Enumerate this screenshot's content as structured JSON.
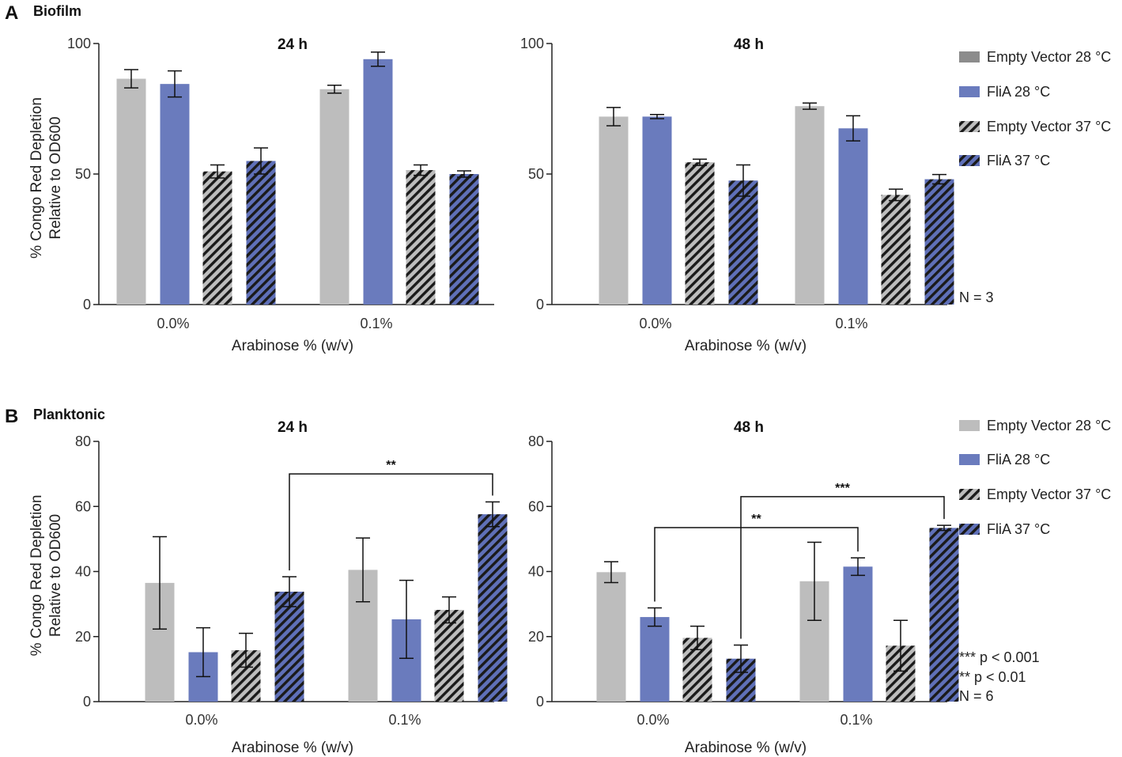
{
  "colors": {
    "ev": "#bdbdbd",
    "flia": "#6a7bbd",
    "ev_hatch_bg": "#bdbdbd",
    "flia_hatch_bg": "#5f70b8",
    "hatch_line": "#1a1a1a",
    "legend_ev28_biofilm": "#8c8c8c"
  },
  "series_styles": [
    {
      "fill": "ev",
      "hatched": false
    },
    {
      "fill": "flia",
      "hatched": false
    },
    {
      "fill": "ev_hatch_bg",
      "hatched": true
    },
    {
      "fill": "flia_hatch_bg",
      "hatched": true
    }
  ],
  "panels": [
    {
      "letter": "A",
      "name": "Biofilm",
      "legend": [
        {
          "label": "Empty Vector 28 °C",
          "color_key": "legend_ev28_biofilm",
          "hatched": false
        },
        {
          "label": "FliA 28 °C",
          "color_key": "flia",
          "hatched": false
        },
        {
          "label": "Empty Vector 37 °C",
          "color_key": "ev_hatch_bg",
          "hatched": true
        },
        {
          "label": "FliA 37 °C",
          "color_key": "flia_hatch_bg",
          "hatched": true
        }
      ],
      "notes": [
        "N = 3"
      ]
    },
    {
      "letter": "B",
      "name": "Planktonic",
      "legend": [
        {
          "label": "Empty Vector 28 °C",
          "color_key": "ev",
          "hatched": false
        },
        {
          "label": "FliA 28 °C",
          "color_key": "flia",
          "hatched": false
        },
        {
          "label": "Empty Vector 37 °C",
          "color_key": "ev_hatch_bg",
          "hatched": true
        },
        {
          "label": "FliA 37 °C",
          "color_key": "flia_hatch_bg",
          "hatched": true
        }
      ],
      "notes": [
        "*** p < 0.001",
        "** p < 0.01",
        "N = 6"
      ]
    }
  ],
  "chart_data": [
    {
      "type": "bar",
      "panel": "Biofilm",
      "title": "24 h",
      "ylabel": "% Congo Red Depletion\nRelative to OD600",
      "xlabel": "Arabinose % (w/v)",
      "categories": [
        "0.0%",
        "0.1%"
      ],
      "ylim": [
        0,
        100
      ],
      "yticks": [
        "0",
        "50",
        "100"
      ],
      "series": [
        {
          "name": "Empty Vector 28 °C",
          "values": [
            86.5,
            82.5
          ],
          "errors": [
            3.5,
            1.5
          ]
        },
        {
          "name": "FliA 28 °C",
          "values": [
            84.5,
            94.0
          ],
          "errors": [
            5.0,
            2.7
          ]
        },
        {
          "name": "Empty Vector 37 °C",
          "values": [
            51.0,
            51.5
          ],
          "errors": [
            2.5,
            2.0
          ]
        },
        {
          "name": "FliA 37 °C",
          "values": [
            55.0,
            50.0
          ],
          "errors": [
            5.0,
            1.2
          ]
        }
      ],
      "significance": []
    },
    {
      "type": "bar",
      "panel": "Biofilm",
      "title": "48 h",
      "ylabel": "",
      "xlabel": "Arabinose % (w/v)",
      "categories": [
        "0.0%",
        "0.1%"
      ],
      "ylim": [
        0,
        100
      ],
      "yticks": [
        "0",
        "50",
        "100"
      ],
      "series": [
        {
          "name": "Empty Vector 28 °C",
          "values": [
            72.0,
            76.0
          ],
          "errors": [
            3.5,
            1.2
          ]
        },
        {
          "name": "FliA 28 °C",
          "values": [
            72.0,
            67.5
          ],
          "errors": [
            0.8,
            4.8
          ]
        },
        {
          "name": "Empty Vector 37 °C",
          "values": [
            54.5,
            42.0
          ],
          "errors": [
            1.2,
            2.2
          ]
        },
        {
          "name": "FliA 37 °C",
          "values": [
            47.5,
            48.0
          ],
          "errors": [
            6.0,
            1.8
          ]
        }
      ],
      "significance": []
    },
    {
      "type": "bar",
      "panel": "Planktonic",
      "title": "24 h",
      "ylabel": "% Congo Red Depletion\nRelative to OD600",
      "xlabel": "Arabinose % (w/v)",
      "categories": [
        "0.0%",
        "0.1%"
      ],
      "ylim": [
        0,
        80
      ],
      "yticks": [
        "0",
        "20",
        "40",
        "60",
        "80"
      ],
      "series": [
        {
          "name": "Empty Vector 28 °C",
          "values": [
            36.5,
            40.5
          ],
          "errors": [
            14.2,
            9.8
          ]
        },
        {
          "name": "FliA 28 °C",
          "values": [
            15.2,
            25.3
          ],
          "errors": [
            7.5,
            12.0
          ]
        },
        {
          "name": "Empty Vector 37 °C",
          "values": [
            15.8,
            28.2
          ],
          "errors": [
            5.2,
            4.0
          ]
        },
        {
          "name": "FliA 37 °C",
          "values": [
            33.8,
            57.6
          ],
          "errors": [
            4.6,
            3.8
          ]
        }
      ],
      "significance": [
        {
          "from": [
            0,
            3
          ],
          "to": [
            1,
            3
          ],
          "level": 70,
          "label": "**"
        }
      ]
    },
    {
      "type": "bar",
      "panel": "Planktonic",
      "title": "48 h",
      "ylabel": "",
      "xlabel": "Arabinose % (w/v)",
      "categories": [
        "0.0%",
        "0.1%"
      ],
      "ylim": [
        0,
        80
      ],
      "yticks": [
        "0",
        "20",
        "40",
        "60",
        "80"
      ],
      "series": [
        {
          "name": "Empty Vector 28 °C",
          "values": [
            39.8,
            37.0
          ],
          "errors": [
            3.2,
            12.0
          ]
        },
        {
          "name": "FliA 28 °C",
          "values": [
            26.0,
            41.5
          ],
          "errors": [
            2.8,
            2.7
          ]
        },
        {
          "name": "Empty Vector 37 °C",
          "values": [
            19.6,
            17.2
          ],
          "errors": [
            3.6,
            7.8
          ]
        },
        {
          "name": "FliA 37 °C",
          "values": [
            13.2,
            53.4
          ],
          "errors": [
            4.2,
            0.8
          ]
        }
      ],
      "significance": [
        {
          "from": [
            0,
            1
          ],
          "to": [
            1,
            1
          ],
          "level": 53.5,
          "label": "**"
        },
        {
          "from": [
            0,
            3
          ],
          "to": [
            1,
            3
          ],
          "level": 63.0,
          "label": "***"
        }
      ]
    }
  ]
}
